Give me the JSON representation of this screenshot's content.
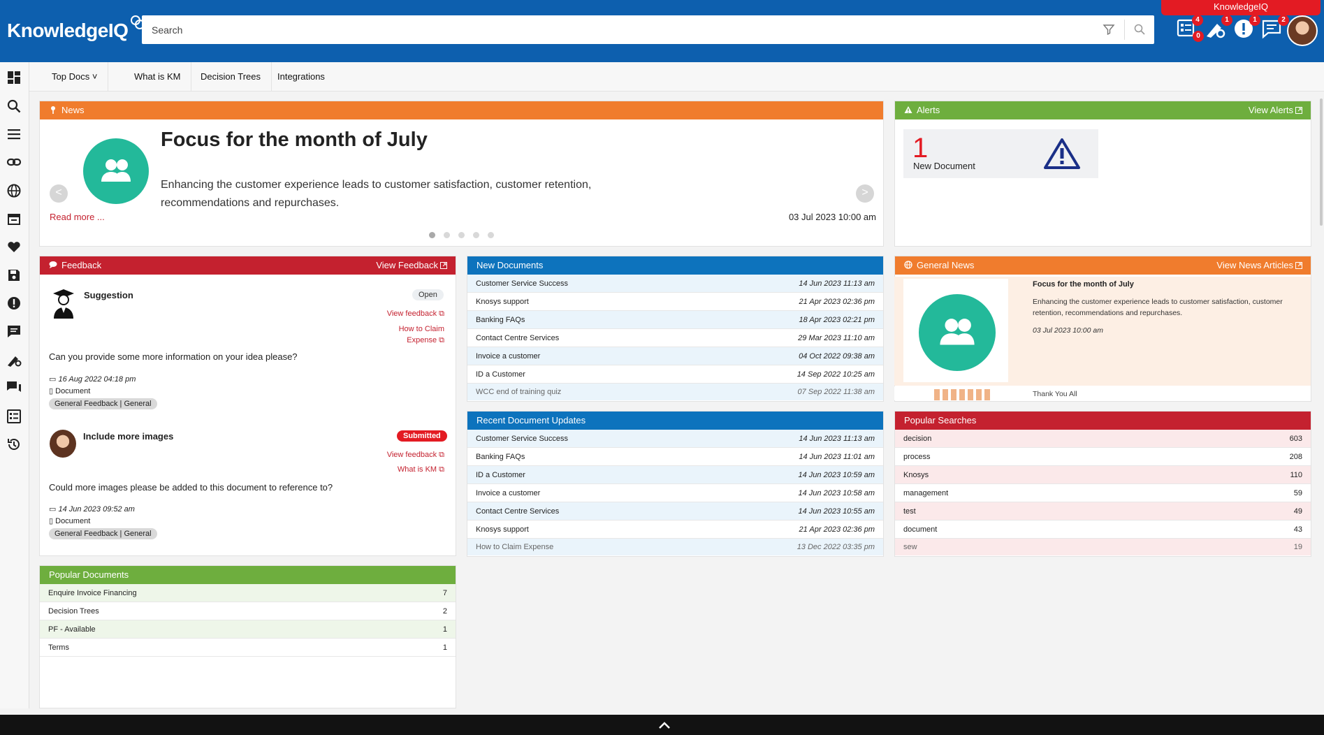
{
  "header": {
    "app_name": "KnowledgeIQ",
    "search_placeholder": "Search",
    "brand_tab": "KnowledgeIQ",
    "badges": {
      "tasks_top": "4",
      "tasks_bottom": "0",
      "settings": "1",
      "alerts": "1",
      "messages": "2"
    }
  },
  "menu": {
    "items": [
      "Top Docs",
      "What is KM",
      "Decision Trees",
      "Integrations"
    ]
  },
  "news": {
    "header": "News",
    "title": "Focus for the month of July",
    "body": "Enhancing the customer experience leads to customer satisfaction, customer retention, recommendations and repurchases.",
    "read_more": "Read more ...",
    "date": "03 Jul 2023 10:00 am",
    "prev": "<",
    "next": ">"
  },
  "alerts": {
    "header": "Alerts",
    "link": "View Alerts",
    "count": "1",
    "label": "New Document"
  },
  "feedback": {
    "header": "Feedback",
    "link": "View Feedback",
    "items": [
      {
        "title": "Suggestion",
        "status": "Open",
        "links": [
          "View feedback",
          "How to Claim Expense"
        ],
        "question": "Can you provide some more information on your idea please?",
        "date": "16 Aug 2022 04:18 pm",
        "type": "Document",
        "tag": "General Feedback | General"
      },
      {
        "title": "Include more images",
        "status": "Submitted",
        "links": [
          "View feedback",
          "What is KM"
        ],
        "question": "Could more images please be added to this document to reference to?",
        "date": "14 Jun 2023 09:52 am",
        "type": "Document",
        "tag": "General Feedback | General"
      }
    ]
  },
  "new_documents": {
    "header": "New Documents",
    "rows": [
      {
        "name": "Customer Service Success",
        "date": "14 Jun 2023 11:13 am"
      },
      {
        "name": "Knosys support",
        "date": "21 Apr 2023 02:36 pm"
      },
      {
        "name": "Banking FAQs",
        "date": "18 Apr 2023 02:21 pm"
      },
      {
        "name": "Contact Centre Services",
        "date": "29 Mar 2023 11:10 am"
      },
      {
        "name": "Invoice a customer",
        "date": "04 Oct 2022 09:38 am"
      },
      {
        "name": "ID a Customer",
        "date": "14 Sep 2022 10:25 am"
      },
      {
        "name": "WCC end of training quiz",
        "date": "07 Sep 2022 11:38 am"
      }
    ]
  },
  "recent_updates": {
    "header": "Recent Document Updates",
    "rows": [
      {
        "name": "Customer Service Success",
        "date": "14 Jun 2023 11:13 am"
      },
      {
        "name": "Banking FAQs",
        "date": "14 Jun 2023 11:01 am"
      },
      {
        "name": "ID a Customer",
        "date": "14 Jun 2023 10:59 am"
      },
      {
        "name": "Invoice a customer",
        "date": "14 Jun 2023 10:58 am"
      },
      {
        "name": "Contact Centre Services",
        "date": "14 Jun 2023 10:55 am"
      },
      {
        "name": "Knosys support",
        "date": "21 Apr 2023 02:36 pm"
      },
      {
        "name": "How to Claim Expense",
        "date": "13 Dec 2022 03:35 pm"
      }
    ]
  },
  "general_news": {
    "header": "General News",
    "link": "View News Articles",
    "title": "Focus for the month of July",
    "body": "Enhancing the customer experience leads to customer satisfaction, customer retention, recommendations and repurchases.",
    "date": "03 Jul 2023 10:00 am",
    "next_title": "Thank You All"
  },
  "popular_searches": {
    "header": "Popular Searches",
    "rows": [
      {
        "term": "decision",
        "count": "603"
      },
      {
        "term": "process",
        "count": "208"
      },
      {
        "term": "Knosys",
        "count": "110"
      },
      {
        "term": "management",
        "count": "59"
      },
      {
        "term": "test",
        "count": "49"
      },
      {
        "term": "document",
        "count": "43"
      },
      {
        "term": "sew",
        "count": "19"
      }
    ]
  },
  "popular_documents": {
    "header": "Popular Documents",
    "rows": [
      {
        "name": "Enquire Invoice Financing",
        "count": "7"
      },
      {
        "name": "Decision Trees",
        "count": "2"
      },
      {
        "name": "PF - Available",
        "count": "1"
      },
      {
        "name": "Terms",
        "count": "1"
      }
    ]
  },
  "colors": {
    "header_blue": "#0d5fae",
    "news_orange": "#f07c2d",
    "alerts_green": "#6eae3e",
    "feedback_red": "#c4212f",
    "docs_blue": "#0d73bd",
    "teal": "#23b99a"
  },
  "icons": {
    "rail": [
      "dashboard-icon",
      "search-icon",
      "menu-icon",
      "link-icon",
      "globe-icon",
      "calendar-icon",
      "heart-icon",
      "save-icon",
      "alert-icon",
      "comment-icon",
      "settings-wand-icon",
      "chat-icon",
      "list-icon",
      "history-icon"
    ]
  }
}
